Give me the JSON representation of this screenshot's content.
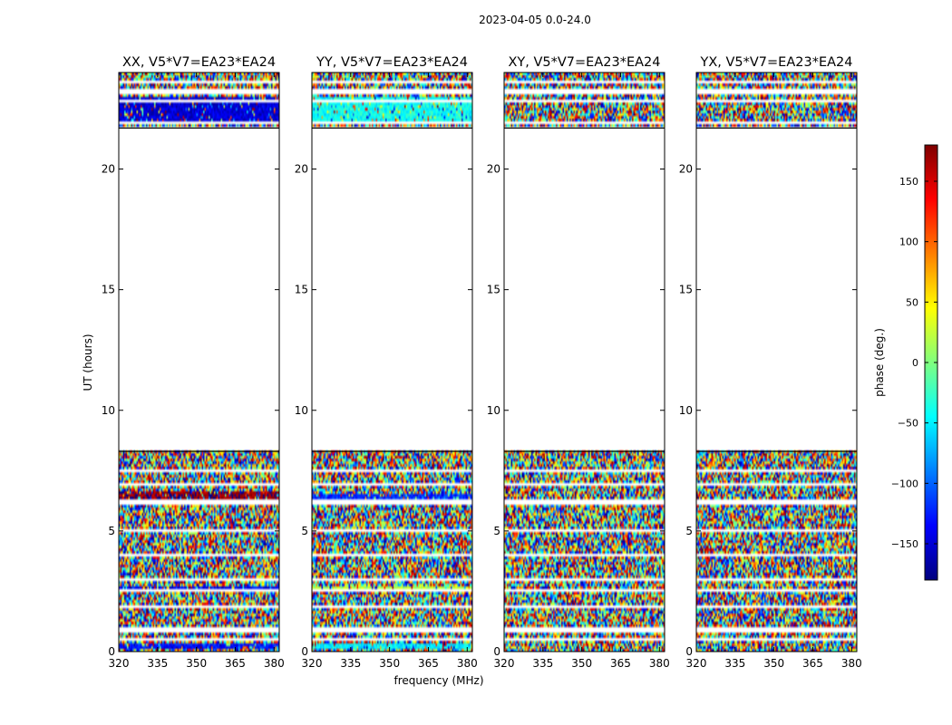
{
  "suptitle": "2023-04-05 0.0-24.0",
  "xlabel": "frequency (MHz)",
  "ylabel": "UT (hours)",
  "colorbar": {
    "label": "phase (deg.)",
    "range": [
      -180,
      180
    ],
    "ticks": [
      -150,
      -100,
      -50,
      0,
      50,
      100,
      150
    ],
    "tick_labels": [
      "−150",
      "−100",
      "−50",
      "0",
      "50",
      "100",
      "150"
    ],
    "colormap": [
      "#00007f",
      "#0000ff",
      "#007fff",
      "#00ffff",
      "#7fff7f",
      "#ffff00",
      "#ff7f00",
      "#ff0000",
      "#7f0000"
    ]
  },
  "chart_data": [
    {
      "type": "heatmap",
      "title": "XX, V5*V7=EA23*EA24",
      "xlim": [
        320,
        382
      ],
      "ylim": [
        0,
        24
      ],
      "xticks": [
        320,
        335,
        350,
        365,
        380
      ],
      "yticks": [
        0,
        5,
        10,
        15,
        20
      ],
      "data_intervals_hours": [
        [
          0.0,
          8.3
        ],
        [
          21.7,
          24.0
        ]
      ],
      "blank_interval_hours": [
        8.3,
        21.7
      ],
      "gap_rows_hours": [
        0.5,
        0.9,
        1.9,
        2.5,
        3.0,
        4.0,
        5.0,
        6.2,
        6.9,
        7.5,
        21.9,
        22.8,
        23.2,
        23.6
      ],
      "coherent_phase_bands": [
        {
          "ut_hours": [
            6.3,
            6.7
          ],
          "phase_deg": 170
        },
        {
          "ut_hours": [
            2.45,
            2.65
          ],
          "phase_deg": -140
        },
        {
          "ut_hours": [
            22.0,
            23.0
          ],
          "phase_deg": -150
        },
        {
          "ut_hours": [
            0.1,
            0.3
          ],
          "phase_deg": -130
        }
      ],
      "value_unit": "phase (deg.)"
    },
    {
      "type": "heatmap",
      "title": "YY, V5*V7=EA23*EA24",
      "xlim": [
        320,
        382
      ],
      "ylim": [
        0,
        24
      ],
      "xticks": [
        320,
        335,
        350,
        365,
        380
      ],
      "yticks": [
        0,
        5,
        10,
        15,
        20
      ],
      "data_intervals_hours": [
        [
          0.0,
          8.3
        ],
        [
          21.7,
          24.0
        ]
      ],
      "blank_interval_hours": [
        8.3,
        21.7
      ],
      "gap_rows_hours": [
        0.5,
        0.9,
        1.9,
        2.5,
        3.0,
        4.0,
        5.0,
        6.2,
        6.9,
        7.5,
        21.9,
        22.8,
        23.2,
        23.6
      ],
      "coherent_phase_bands": [
        {
          "ut_hours": [
            6.3,
            6.5
          ],
          "phase_deg": -120
        },
        {
          "ut_hours": [
            2.45,
            2.65
          ],
          "phase_deg": 20
        },
        {
          "ut_hours": [
            22.0,
            23.0
          ],
          "phase_deg": -40
        },
        {
          "ut_hours": [
            0.1,
            0.3
          ],
          "phase_deg": -50
        }
      ],
      "value_unit": "phase (deg.)"
    },
    {
      "type": "heatmap",
      "title": "XY, V5*V7=EA23*EA24",
      "xlim": [
        320,
        382
      ],
      "ylim": [
        0,
        24
      ],
      "xticks": [
        320,
        335,
        350,
        365,
        380
      ],
      "yticks": [
        0,
        5,
        10,
        15,
        20
      ],
      "data_intervals_hours": [
        [
          0.0,
          8.3
        ],
        [
          21.7,
          24.0
        ]
      ],
      "blank_interval_hours": [
        8.3,
        21.7
      ],
      "gap_rows_hours": [
        0.5,
        0.9,
        1.9,
        2.5,
        3.0,
        4.0,
        5.0,
        6.2,
        6.9,
        7.5,
        21.9,
        22.8,
        23.2,
        23.6
      ],
      "coherent_phase_bands": [],
      "value_unit": "phase (deg.)"
    },
    {
      "type": "heatmap",
      "title": "YX, V5*V7=EA23*EA24",
      "xlim": [
        320,
        382
      ],
      "ylim": [
        0,
        24
      ],
      "xticks": [
        320,
        335,
        350,
        365,
        380
      ],
      "yticks": [
        0,
        5,
        10,
        15,
        20
      ],
      "data_intervals_hours": [
        [
          0.0,
          8.3
        ],
        [
          21.7,
          24.0
        ]
      ],
      "blank_interval_hours": [
        8.3,
        21.7
      ],
      "gap_rows_hours": [
        0.5,
        0.9,
        1.9,
        2.5,
        3.0,
        4.0,
        5.0,
        6.2,
        6.9,
        7.5,
        21.9,
        22.8,
        23.2,
        23.6
      ],
      "coherent_phase_bands": [],
      "value_unit": "phase (deg.)"
    }
  ]
}
